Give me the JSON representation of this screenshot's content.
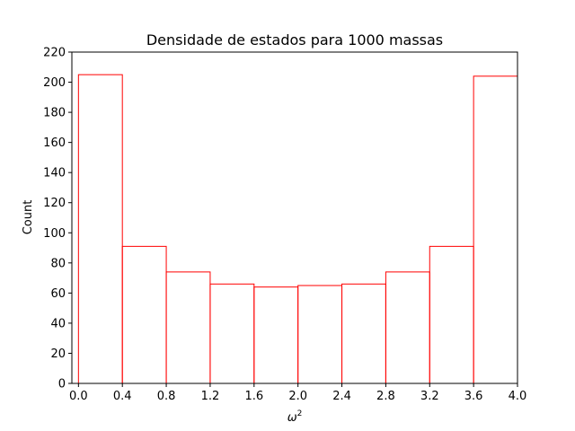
{
  "chart_data": {
    "type": "bar",
    "title": "Densidade de estados para 1000 massas",
    "xlabel": "ω",
    "xlabel_sup": "2",
    "ylabel": "Count",
    "bin_edges": [
      0.0,
      0.4,
      0.8,
      1.2,
      1.6,
      2.0,
      2.4,
      2.8,
      3.2,
      3.6,
      4.0
    ],
    "values": [
      205,
      91,
      74,
      66,
      64,
      65,
      66,
      74,
      91,
      204
    ],
    "xlim": [
      -0.06,
      4.0
    ],
    "ylim": [
      0,
      220
    ],
    "xticks": [
      "0.0",
      "0.4",
      "0.8",
      "1.2",
      "1.6",
      "2.0",
      "2.4",
      "2.8",
      "3.2",
      "3.6",
      "4.0"
    ],
    "yticks": [
      "0",
      "20",
      "40",
      "60",
      "80",
      "100",
      "120",
      "140",
      "160",
      "180",
      "200",
      "220"
    ],
    "grid": false,
    "bar_edge_color": "#ff0000",
    "bar_fill": "none",
    "axis_color": "#000000"
  }
}
